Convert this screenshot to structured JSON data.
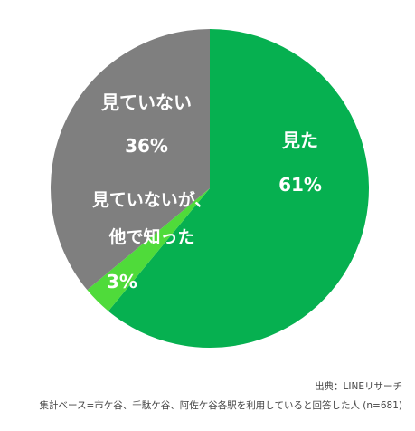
{
  "chart_data": {
    "type": "pie",
    "slices": [
      {
        "name": "見た",
        "value": 61,
        "label": "61%",
        "color": "#06b050"
      },
      {
        "name": "見ていないが、他で知った",
        "value": 3,
        "label": "3%",
        "color": "#4fdb3a"
      },
      {
        "name": "見ていない",
        "value": 36,
        "label": "36%",
        "color": "#7f7f7f"
      }
    ],
    "start": "12 o'clock",
    "direction": "clockwise",
    "legend": "none"
  },
  "labels": {
    "seen_name": "見た",
    "seen_value": "61%",
    "heard_name_line1": "見ていないが、",
    "heard_name_line2": "他で知った",
    "heard_value": "3%",
    "unseen_name": "見ていない",
    "unseen_value": "36%"
  },
  "footer": {
    "source": "出典：LINEリサーチ",
    "base": "集計ベース=市ケ谷、千駄ケ谷、阿佐ケ谷各駅を利用していると回答した人 (n=681)"
  }
}
